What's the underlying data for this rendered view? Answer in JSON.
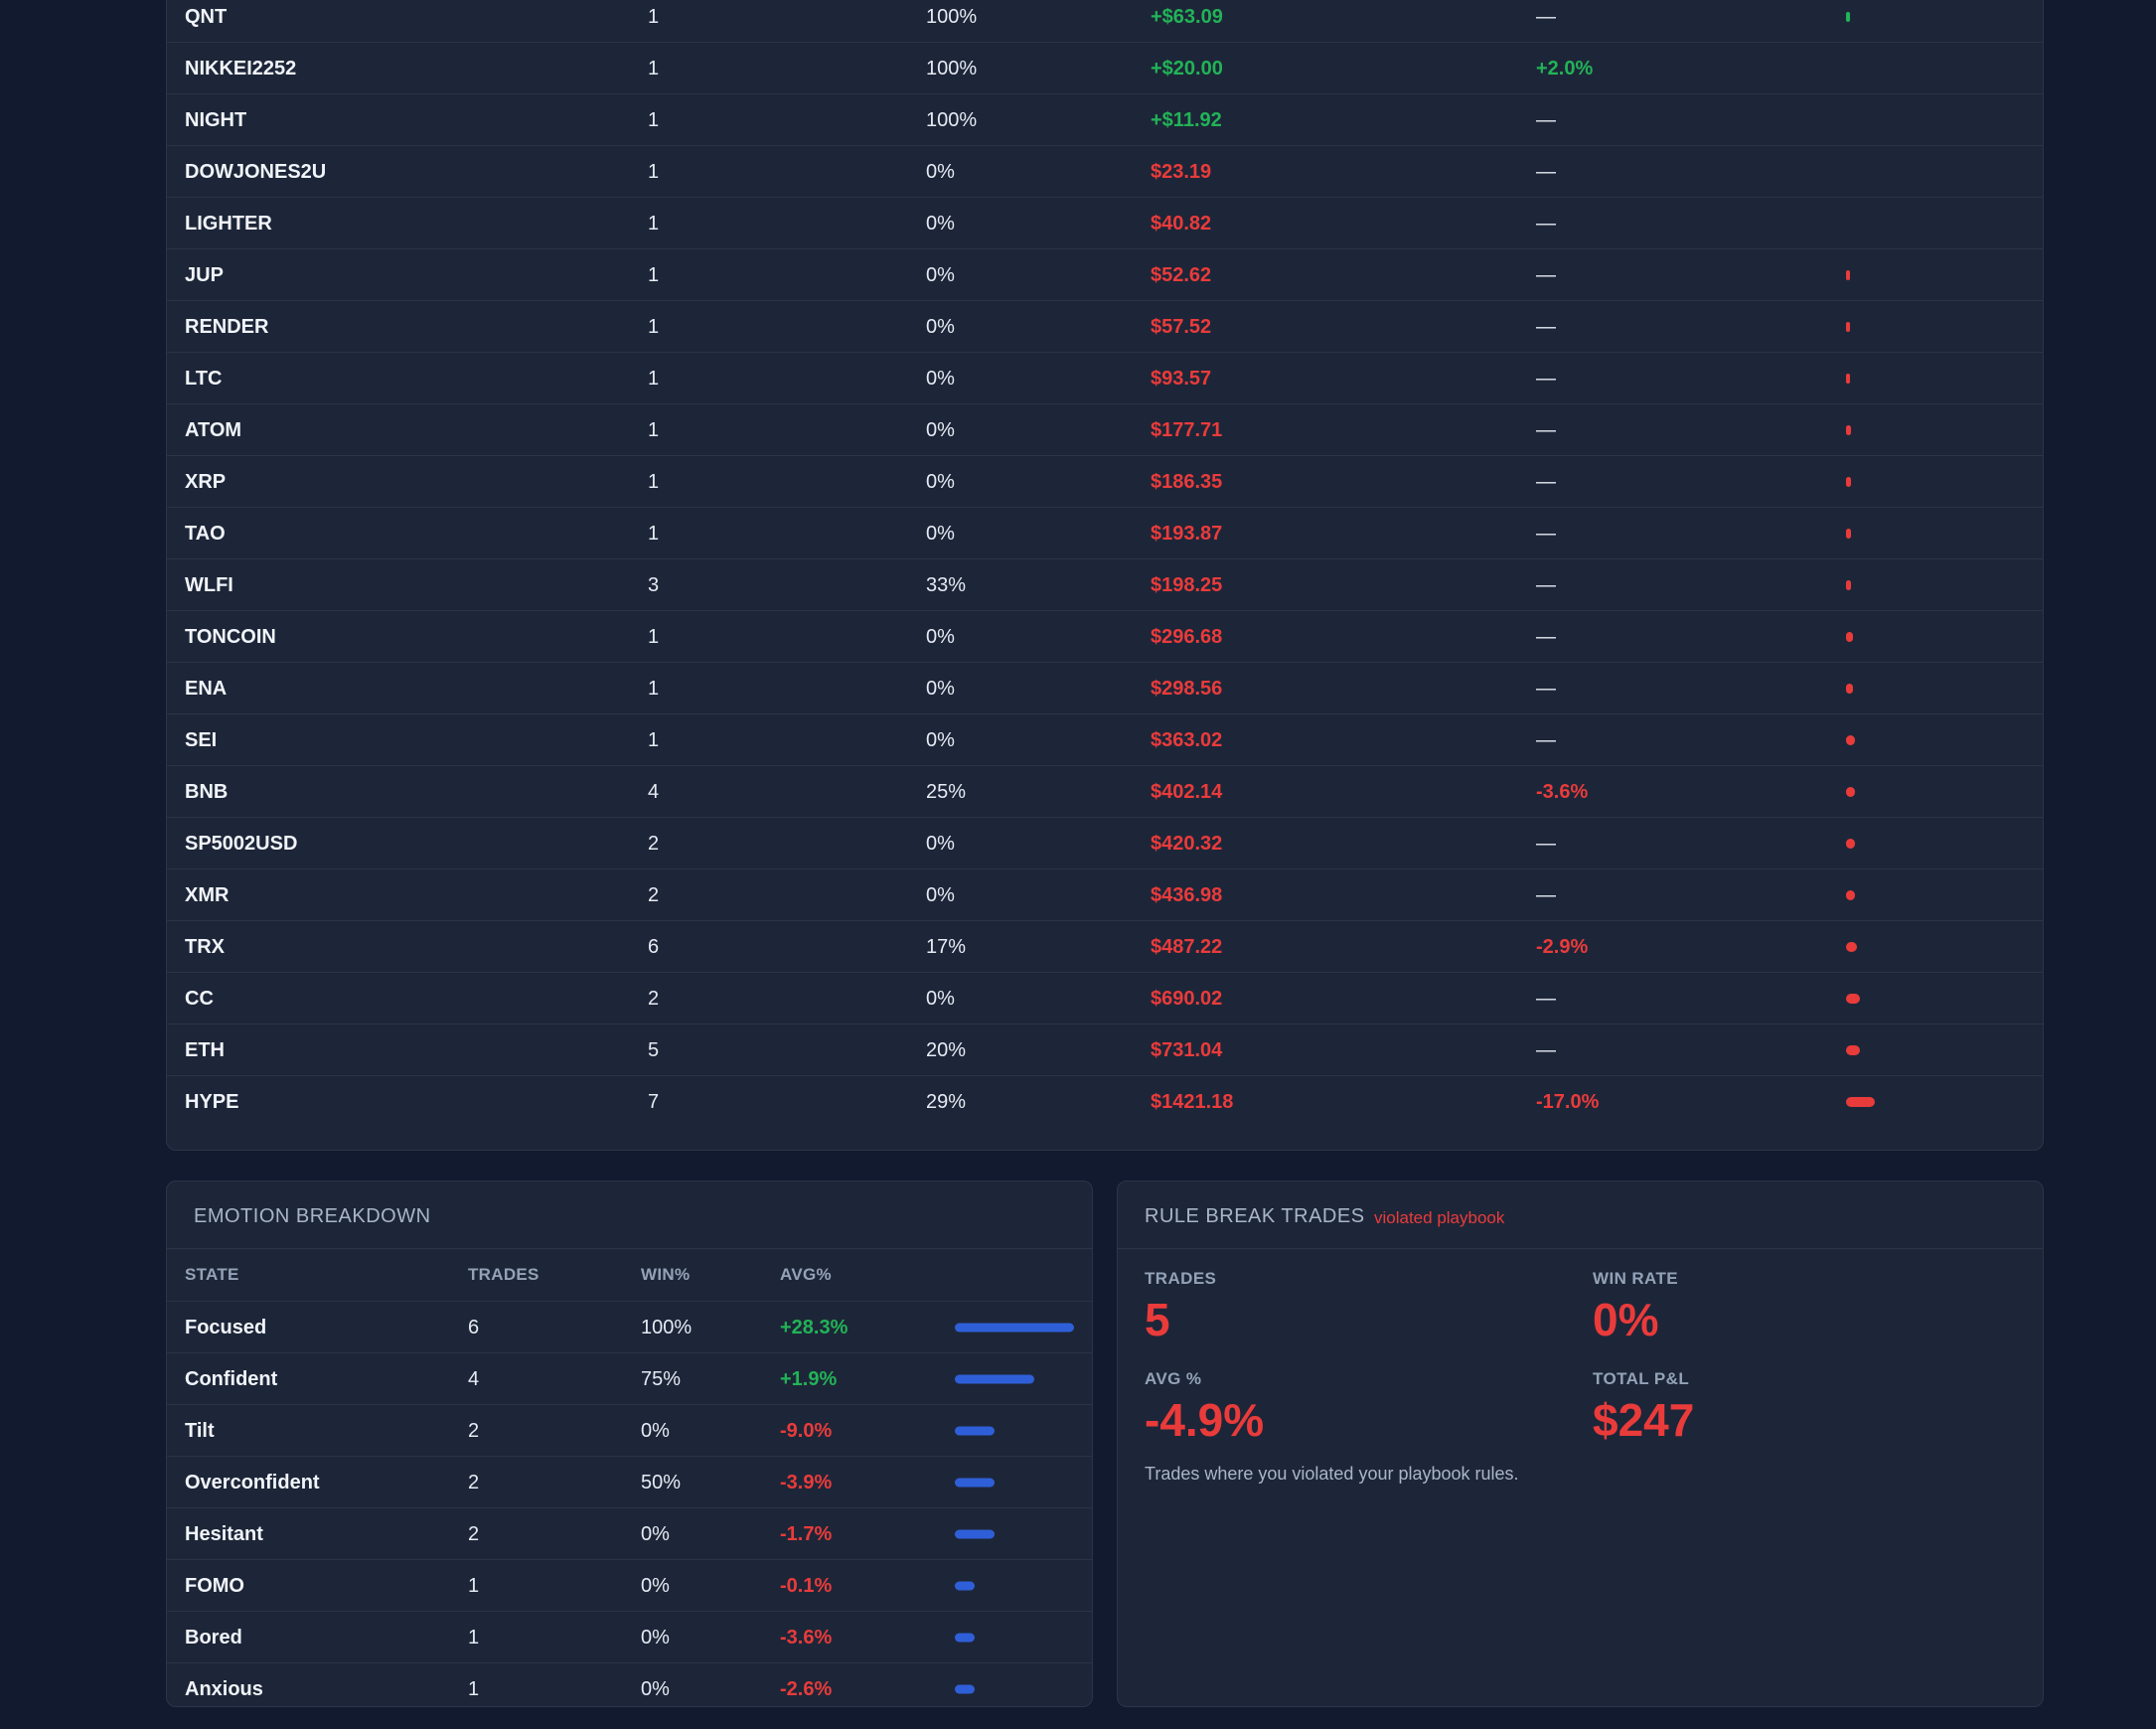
{
  "symbols": [
    {
      "symbol": "QNT",
      "trades": "1",
      "win": "100%",
      "pnl": "+$63.09",
      "pnl_sign": "pos",
      "avg": "—",
      "avg_sign": "dash",
      "bar": 0.002,
      "bar_sign": "pos"
    },
    {
      "symbol": "NIKKEI2252",
      "trades": "1",
      "win": "100%",
      "pnl": "+$20.00",
      "pnl_sign": "pos",
      "avg": "+2.0%",
      "avg_sign": "pos",
      "bar": 0,
      "bar_sign": "pos"
    },
    {
      "symbol": "NIGHT",
      "trades": "1",
      "win": "100%",
      "pnl": "+$11.92",
      "pnl_sign": "pos",
      "avg": "—",
      "avg_sign": "dash",
      "bar": 0,
      "bar_sign": "pos"
    },
    {
      "symbol": "DOWJONES2U",
      "trades": "1",
      "win": "0%",
      "pnl": "$23.19",
      "pnl_sign": "neg",
      "avg": "—",
      "avg_sign": "dash",
      "bar": 0,
      "bar_sign": "neg"
    },
    {
      "symbol": "LIGHTER",
      "trades": "1",
      "win": "0%",
      "pnl": "$40.82",
      "pnl_sign": "neg",
      "avg": "—",
      "avg_sign": "dash",
      "bar": 0,
      "bar_sign": "neg"
    },
    {
      "symbol": "JUP",
      "trades": "1",
      "win": "0%",
      "pnl": "$52.62",
      "pnl_sign": "neg",
      "avg": "—",
      "avg_sign": "dash",
      "bar": 0.002,
      "bar_sign": "neg"
    },
    {
      "symbol": "RENDER",
      "trades": "1",
      "win": "0%",
      "pnl": "$57.52",
      "pnl_sign": "neg",
      "avg": "—",
      "avg_sign": "dash",
      "bar": 0.002,
      "bar_sign": "neg"
    },
    {
      "symbol": "LTC",
      "trades": "1",
      "win": "0%",
      "pnl": "$93.57",
      "pnl_sign": "neg",
      "avg": "—",
      "avg_sign": "dash",
      "bar": 0.002,
      "bar_sign": "neg"
    },
    {
      "symbol": "ATOM",
      "trades": "1",
      "win": "0%",
      "pnl": "$177.71",
      "pnl_sign": "neg",
      "avg": "—",
      "avg_sign": "dash",
      "bar": 0.003,
      "bar_sign": "neg"
    },
    {
      "symbol": "XRP",
      "trades": "1",
      "win": "0%",
      "pnl": "$186.35",
      "pnl_sign": "neg",
      "avg": "—",
      "avg_sign": "dash",
      "bar": 0.003,
      "bar_sign": "neg"
    },
    {
      "symbol": "TAO",
      "trades": "1",
      "win": "0%",
      "pnl": "$193.87",
      "pnl_sign": "neg",
      "avg": "—",
      "avg_sign": "dash",
      "bar": 0.003,
      "bar_sign": "neg"
    },
    {
      "symbol": "WLFI",
      "trades": "3",
      "win": "33%",
      "pnl": "$198.25",
      "pnl_sign": "neg",
      "avg": "—",
      "avg_sign": "dash",
      "bar": 0.003,
      "bar_sign": "neg"
    },
    {
      "symbol": "TONCOIN",
      "trades": "1",
      "win": "0%",
      "pnl": "$296.68",
      "pnl_sign": "neg",
      "avg": "—",
      "avg_sign": "dash",
      "bar": 0.004,
      "bar_sign": "neg"
    },
    {
      "symbol": "ENA",
      "trades": "1",
      "win": "0%",
      "pnl": "$298.56",
      "pnl_sign": "neg",
      "avg": "—",
      "avg_sign": "dash",
      "bar": 0.004,
      "bar_sign": "neg"
    },
    {
      "symbol": "SEI",
      "trades": "1",
      "win": "0%",
      "pnl": "$363.02",
      "pnl_sign": "neg",
      "avg": "—",
      "avg_sign": "dash",
      "bar": 0.005,
      "bar_sign": "neg"
    },
    {
      "symbol": "BNB",
      "trades": "4",
      "win": "25%",
      "pnl": "$402.14",
      "pnl_sign": "neg",
      "avg": "-3.6%",
      "avg_sign": "neg",
      "bar": 0.005,
      "bar_sign": "neg"
    },
    {
      "symbol": "SP5002USD",
      "trades": "2",
      "win": "0%",
      "pnl": "$420.32",
      "pnl_sign": "neg",
      "avg": "—",
      "avg_sign": "dash",
      "bar": 0.005,
      "bar_sign": "neg"
    },
    {
      "symbol": "XMR",
      "trades": "2",
      "win": "0%",
      "pnl": "$436.98",
      "pnl_sign": "neg",
      "avg": "—",
      "avg_sign": "dash",
      "bar": 0.005,
      "bar_sign": "neg"
    },
    {
      "symbol": "TRX",
      "trades": "6",
      "win": "17%",
      "pnl": "$487.22",
      "pnl_sign": "neg",
      "avg": "-2.9%",
      "avg_sign": "neg",
      "bar": 0.006,
      "bar_sign": "neg"
    },
    {
      "symbol": "CC",
      "trades": "2",
      "win": "0%",
      "pnl": "$690.02",
      "pnl_sign": "neg",
      "avg": "—",
      "avg_sign": "dash",
      "bar": 0.008,
      "bar_sign": "neg"
    },
    {
      "symbol": "ETH",
      "trades": "5",
      "win": "20%",
      "pnl": "$731.04",
      "pnl_sign": "neg",
      "avg": "—",
      "avg_sign": "dash",
      "bar": 0.008,
      "bar_sign": "neg"
    },
    {
      "symbol": "HYPE",
      "trades": "7",
      "win": "29%",
      "pnl": "$1421.18",
      "pnl_sign": "neg",
      "avg": "-17.0%",
      "avg_sign": "neg",
      "bar": 0.016,
      "bar_sign": "neg"
    }
  ],
  "emotion": {
    "title": "EMOTION BREAKDOWN",
    "headers": {
      "state": "STATE",
      "trades": "TRADES",
      "win": "WIN%",
      "avg": "AVG%"
    },
    "rows": [
      {
        "state": "Focused",
        "trades": "6",
        "win": "100%",
        "avg": "+28.3%",
        "avg_sign": "pos",
        "bar": 1.0
      },
      {
        "state": "Confident",
        "trades": "4",
        "win": "75%",
        "avg": "+1.9%",
        "avg_sign": "pos",
        "bar": 0.667
      },
      {
        "state": "Tilt",
        "trades": "2",
        "win": "0%",
        "avg": "-9.0%",
        "avg_sign": "neg",
        "bar": 0.333
      },
      {
        "state": "Overconfident",
        "trades": "2",
        "win": "50%",
        "avg": "-3.9%",
        "avg_sign": "neg",
        "bar": 0.333
      },
      {
        "state": "Hesitant",
        "trades": "2",
        "win": "0%",
        "avg": "-1.7%",
        "avg_sign": "neg",
        "bar": 0.333
      },
      {
        "state": "FOMO",
        "trades": "1",
        "win": "0%",
        "avg": "-0.1%",
        "avg_sign": "neg",
        "bar": 0.167
      },
      {
        "state": "Bored",
        "trades": "1",
        "win": "0%",
        "avg": "-3.6%",
        "avg_sign": "neg",
        "bar": 0.167
      },
      {
        "state": "Anxious",
        "trades": "1",
        "win": "0%",
        "avg": "-2.6%",
        "avg_sign": "neg",
        "bar": 0.167
      }
    ]
  },
  "rule_break": {
    "title": "RULE BREAK TRADES",
    "subtitle": "violated playbook",
    "trades_label": "TRADES",
    "trades_value": "5",
    "winrate_label": "WIN RATE",
    "winrate_value": "0%",
    "avg_label": "AVG %",
    "avg_value": "-4.9%",
    "pnl_label": "TOTAL P&L",
    "pnl_value": "$247",
    "note": "Trades where you violated your playbook rules."
  },
  "colors": {
    "positive": "#22b357",
    "negative": "#ea3b3b",
    "bar": "#2f5fd8"
  }
}
